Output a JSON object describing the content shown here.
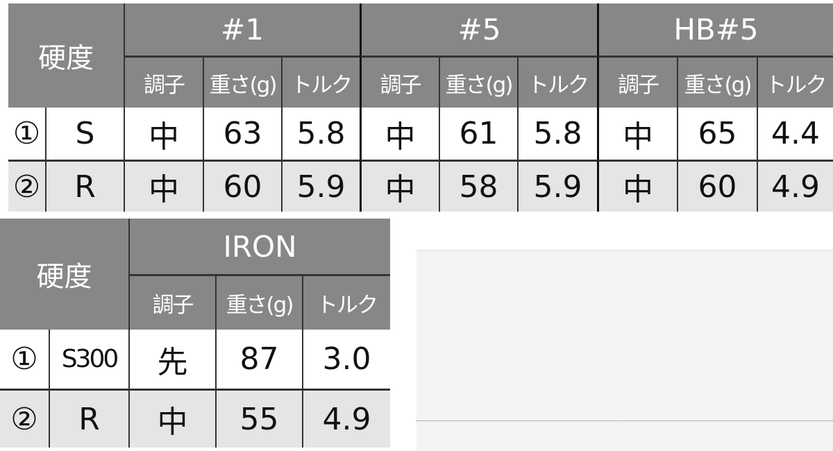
{
  "grade_label": "硬度",
  "sub_headers": [
    "調子",
    "重さ(g)",
    "トルク"
  ],
  "top_table": {
    "groups": [
      "#1",
      "#5",
      "HB#5"
    ],
    "rows": [
      {
        "no": "①",
        "grade": "S",
        "values": [
          [
            "中",
            "63",
            "5.8"
          ],
          [
            "中",
            "61",
            "5.8"
          ],
          [
            "中",
            "65",
            "4.4"
          ]
        ]
      },
      {
        "no": "②",
        "grade": "R",
        "values": [
          [
            "中",
            "60",
            "5.9"
          ],
          [
            "中",
            "58",
            "5.9"
          ],
          [
            "中",
            "60",
            "4.9"
          ]
        ]
      }
    ]
  },
  "bottom_table": {
    "groups": [
      "IRON"
    ],
    "rows": [
      {
        "no": "①",
        "grade": "S300",
        "values": [
          [
            "先",
            "87",
            "3.0"
          ]
        ]
      },
      {
        "no": "②",
        "grade": "R",
        "values": [
          [
            "中",
            "55",
            "4.9"
          ]
        ]
      }
    ]
  },
  "colors": {
    "header_bg": "#878787",
    "row_alt_bg": "#e5e5e5",
    "panel_bg": "#f3f3f3"
  }
}
